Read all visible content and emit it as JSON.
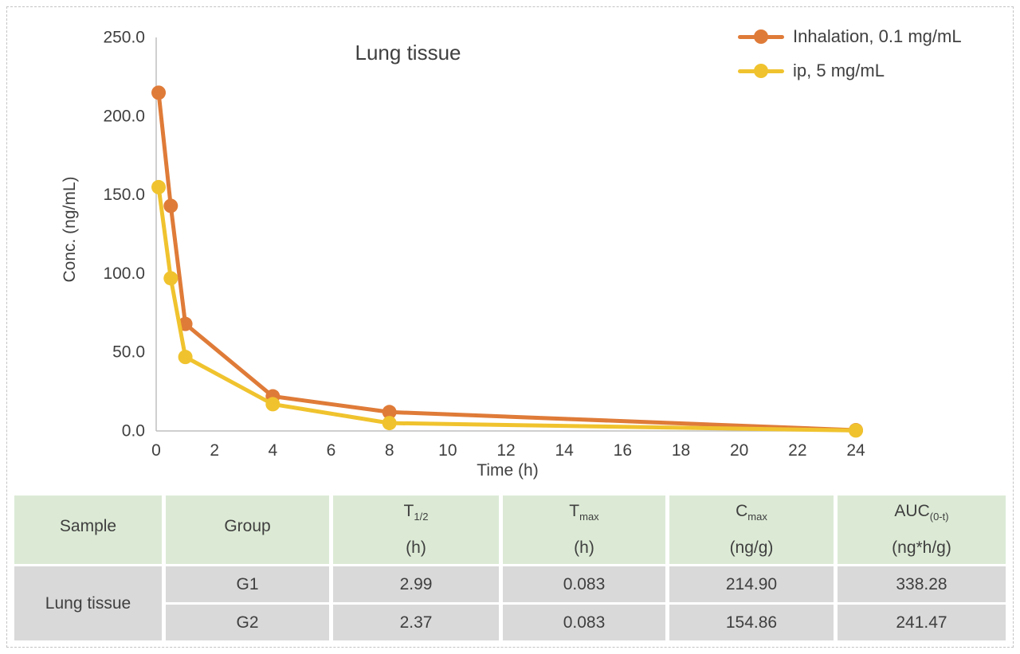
{
  "chart_data": {
    "type": "line",
    "title": "Lung tissue",
    "xlabel": "Time (h)",
    "ylabel": "Conc. (ng/mL)",
    "xlim": [
      0,
      24
    ],
    "ylim": [
      0,
      250
    ],
    "x_ticks": [
      0,
      2,
      4,
      6,
      8,
      10,
      12,
      14,
      16,
      18,
      20,
      22,
      24
    ],
    "y_ticks": [
      0,
      50,
      100,
      150,
      200,
      250
    ],
    "y_tick_labels": [
      "0.0",
      "50.0",
      "100.0",
      "150.0",
      "200.0",
      "250.0"
    ],
    "grid": false,
    "legend_position": "top-right",
    "axis_color": "#bfbfbf",
    "text_color": "#404040",
    "x": [
      0.083,
      0.5,
      1,
      4,
      8,
      24
    ],
    "series": [
      {
        "name": "Inhalation, 0.1 mg/mL",
        "color": "#df7b38",
        "values": [
          214.9,
          143,
          68,
          22,
          12,
          0.5
        ]
      },
      {
        "name": "ip, 5 mg/mL",
        "color": "#f0c32e",
        "values": [
          154.9,
          97,
          47,
          17,
          5,
          0.3
        ]
      }
    ]
  },
  "table": {
    "header_bg": "#dcead5",
    "body_bg": "#d9d9d9",
    "columns": [
      {
        "main": "Sample",
        "sub": "",
        "unit": ""
      },
      {
        "main": "Group",
        "sub": "",
        "unit": ""
      },
      {
        "main": "T",
        "sub": "1/2",
        "unit": "(h)"
      },
      {
        "main": "T",
        "sub": "max",
        "unit": "(h)"
      },
      {
        "main": "C",
        "sub": "max",
        "unit": "(ng/g)"
      },
      {
        "main": "AUC",
        "sub": "(0-t)",
        "unit": "(ng*h/g)"
      }
    ],
    "sample": "Lung tissue",
    "rows": [
      {
        "group": "G1",
        "t_half": "2.99",
        "t_max": "0.083",
        "c_max": "214.90",
        "auc": "338.28"
      },
      {
        "group": "G2",
        "t_half": "2.37",
        "t_max": "0.083",
        "c_max": "154.86",
        "auc": "241.47"
      }
    ]
  }
}
